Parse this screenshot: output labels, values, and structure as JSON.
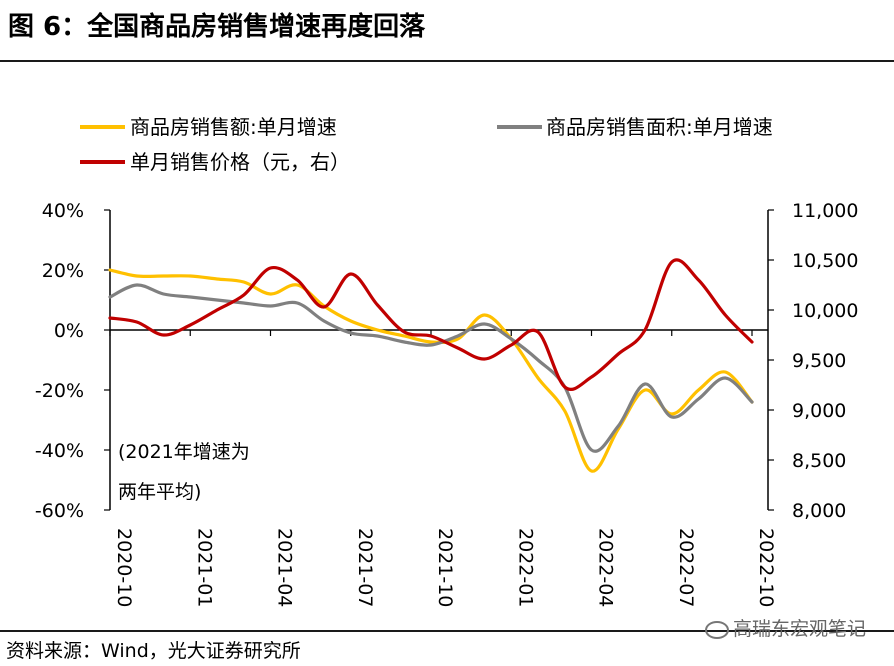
{
  "title": "图 6：全国商品房销售增速再度回落",
  "source": "资料来源：Wind，光大证券研究所",
  "watermark": "高瑞东宏观笔记",
  "colors": {
    "yellow": "#FFC000",
    "gray": "#808080",
    "red": "#C00000"
  },
  "chart_data": {
    "type": "line",
    "x": [
      "2020-10",
      "2020-11",
      "2020-12",
      "2021-01",
      "2021-02",
      "2021-03",
      "2021-04",
      "2021-05",
      "2021-06",
      "2021-07",
      "2021-08",
      "2021-09",
      "2021-10",
      "2021-11",
      "2021-12",
      "2022-01",
      "2022-02",
      "2022-03",
      "2022-04",
      "2022-05",
      "2022-06",
      "2022-07",
      "2022-08",
      "2022-09",
      "2022-10"
    ],
    "x_tick_labels": [
      "2020-10",
      "2021-01",
      "2021-04",
      "2021-07",
      "2021-10",
      "2022-01",
      "2022-04",
      "2022-07",
      "2022-10"
    ],
    "x_tick_index": [
      0,
      3,
      6,
      9,
      12,
      15,
      18,
      21,
      24
    ],
    "left_axis": {
      "ylim": [
        -60,
        40
      ],
      "ticks": [
        40,
        20,
        0,
        -20,
        -40,
        -60
      ],
      "tick_labels": [
        "40%",
        "20%",
        "0%",
        "-20%",
        "-40%",
        "-60%"
      ]
    },
    "right_axis": {
      "ylim": [
        8000,
        11000
      ],
      "ticks": [
        11000,
        10500,
        10000,
        9500,
        9000,
        8500,
        8000
      ],
      "tick_labels": [
        "11,000",
        "10,500",
        "10,000",
        "9,500",
        "9,000",
        "8,500",
        "8,000"
      ]
    },
    "series": [
      {
        "name": "商品房销售额:单月增速",
        "axis": "left",
        "color": "#FFC000",
        "values": [
          20,
          18,
          18,
          18,
          17,
          16,
          12,
          15,
          8,
          3,
          0,
          -2,
          -4,
          -3,
          5,
          -3,
          -16,
          -27,
          -47,
          -33,
          -20,
          -28,
          -20,
          -14,
          -24
        ]
      },
      {
        "name": "商品房销售面积:单月增速",
        "axis": "left",
        "color": "#808080",
        "values": [
          11,
          15,
          12,
          11,
          10,
          9,
          8,
          9,
          3,
          -1,
          -2,
          -4,
          -5,
          -2,
          2,
          -3,
          -10,
          -19,
          -40,
          -32,
          -18,
          -29,
          -23,
          -16,
          -24
        ]
      },
      {
        "name": "单月销售价格（元，右）",
        "axis": "right",
        "color": "#C00000",
        "values": [
          9920,
          9880,
          9750,
          9850,
          10000,
          10150,
          10420,
          10300,
          10030,
          10360,
          10050,
          9780,
          9740,
          9620,
          9510,
          9650,
          9780,
          9230,
          9330,
          9560,
          9800,
          10480,
          10300,
          9950,
          9680
        ]
      }
    ],
    "annotation": [
      "(2021年增速为",
      "两年平均)"
    ],
    "legend": [
      {
        "label": "商品房销售额:单月增速",
        "color": "#FFC000"
      },
      {
        "label": "商品房销售面积:单月增速",
        "color": "#808080"
      },
      {
        "label": "单月销售价格（元，右）",
        "color": "#C00000"
      }
    ]
  }
}
